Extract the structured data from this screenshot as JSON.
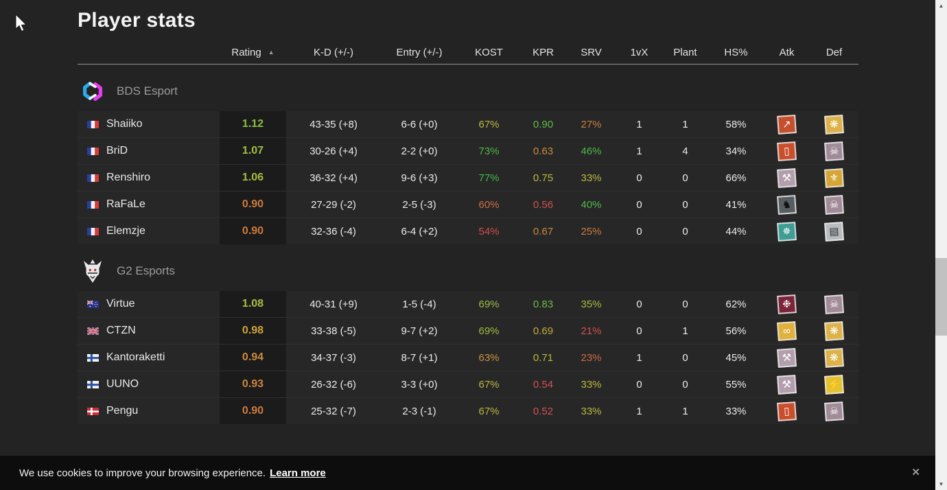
{
  "page": {
    "title": "Player stats"
  },
  "table": {
    "columns": [
      {
        "key": "name",
        "label": ""
      },
      {
        "key": "rating",
        "label": "Rating"
      },
      {
        "key": "kd",
        "label": "K-D (+/-)"
      },
      {
        "key": "entry",
        "label": "Entry (+/-)"
      },
      {
        "key": "kost",
        "label": "KOST"
      },
      {
        "key": "kpr",
        "label": "KPR"
      },
      {
        "key": "srv",
        "label": "SRV"
      },
      {
        "key": "onevx",
        "label": "1vX"
      },
      {
        "key": "plant",
        "label": "Plant"
      },
      {
        "key": "hs",
        "label": "HS%"
      },
      {
        "key": "atk",
        "label": "Atk"
      },
      {
        "key": "def",
        "label": "Def"
      }
    ],
    "sort": {
      "column": "Rating",
      "indicator": "▲"
    }
  },
  "teams": [
    {
      "name": "BDS Esport",
      "logo": "bds",
      "players": [
        {
          "name": "Shaiiko",
          "country": "fr",
          "rating": "1.12",
          "rating_color": "#8cc043",
          "kd": "43-35 (+8)",
          "entry": "6-6 (+0)",
          "kost": "67%",
          "kost_color": "#bdb83e",
          "kpr": "0.90",
          "kpr_color": "#62bb49",
          "srv": "27%",
          "srv_color": "#c97f3e",
          "onevx": "1",
          "plant": "1",
          "hs": "58%",
          "atk": {
            "op": "ash-breach-round",
            "glyph": "↗",
            "bg": "#c4502e",
            "fg": "#ffffff"
          },
          "def": {
            "op": "aruni-laser-web",
            "glyph": "❋",
            "bg": "#ddb24a",
            "fg": "#ffffff"
          }
        },
        {
          "name": "BriD",
          "country": "fr",
          "rating": "1.07",
          "rating_color": "#a2bf41",
          "kd": "30-26 (+4)",
          "entry": "2-2 (+0)",
          "kost": "73%",
          "kost_color": "#4eb84a",
          "kpr": "0.63",
          "kpr_color": "#cb8c3e",
          "srv": "46%",
          "srv_color": "#4eb84a",
          "onevx": "1",
          "plant": "4",
          "hs": "34%",
          "atk": {
            "op": "thermite-charge",
            "glyph": "▯",
            "bg": "#c94e2c",
            "fg": "#ffffff"
          },
          "def": {
            "op": "smoke-skull-mask",
            "glyph": "☠",
            "bg": "#a18b98",
            "fg": "#ffffff"
          }
        },
        {
          "name": "Renshiro",
          "country": "fr",
          "rating": "1.06",
          "rating_color": "#a6bf41",
          "kd": "36-32 (+4)",
          "entry": "9-6 (+3)",
          "kost": "77%",
          "kost_color": "#43ba47",
          "kpr": "0.75",
          "kpr_color": "#bdb83e",
          "srv": "33%",
          "srv_color": "#bdb83e",
          "onevx": "0",
          "plant": "0",
          "hs": "66%",
          "atk": {
            "op": "sledge-hammer",
            "glyph": "⚒",
            "bg": "#b29ead",
            "fg": "#ffffff"
          },
          "def": {
            "op": "valkyrie-wings",
            "glyph": "⚜",
            "bg": "#d5a636",
            "fg": "#ffffff"
          }
        },
        {
          "name": "RaFaLe",
          "country": "fr",
          "rating": "0.90",
          "rating_color": "#cd7a3c",
          "kd": "27-29 (-2)",
          "entry": "2-5 (-3)",
          "kost": "60%",
          "kost_color": "#cd6f46",
          "kpr": "0.56",
          "kpr_color": "#d15252",
          "srv": "40%",
          "srv_color": "#50b94b",
          "onevx": "0",
          "plant": "0",
          "hs": "41%",
          "atk": {
            "op": "horse",
            "glyph": "♞",
            "bg": "#585d61",
            "fg": "#0c0c0c"
          },
          "def": {
            "op": "smoke-skull-mask",
            "glyph": "☠",
            "bg": "#a18b98",
            "fg": "#ffffff"
          }
        },
        {
          "name": "Elemzje",
          "country": "fr",
          "rating": "0.90",
          "rating_color": "#cd7a3c",
          "kd": "32-36 (-4)",
          "entry": "6-4 (+2)",
          "kost": "54%",
          "kost_color": "#d14c4c",
          "kpr": "0.67",
          "kpr_color": "#ca883e",
          "srv": "25%",
          "srv_color": "#cb7a40",
          "onevx": "0",
          "plant": "0",
          "hs": "44%",
          "atk": {
            "op": "phoenix",
            "glyph": "✵",
            "bg": "#3e9d94",
            "fg": "#ffffff"
          },
          "def": {
            "op": "shield-eyes",
            "glyph": "▤",
            "bg": "#b9bcbf",
            "fg": "#2f2f2f"
          }
        }
      ]
    },
    {
      "name": "G2 Esports",
      "logo": "g2",
      "players": [
        {
          "name": "Virtue",
          "country": "au",
          "rating": "1.08",
          "rating_color": "#a6c042",
          "kd": "40-31 (+9)",
          "entry": "1-5 (-4)",
          "kost": "69%",
          "kost_color": "#9cbd40",
          "kpr": "0.83",
          "kpr_color": "#6cbd46",
          "srv": "35%",
          "srv_color": "#a4bd40",
          "onevx": "0",
          "plant": "0",
          "hs": "62%",
          "atk": {
            "op": "twitch-drone",
            "glyph": "❉",
            "bg": "#7c2438",
            "fg": "#ffffff"
          },
          "def": {
            "op": "smoke-skull-mask",
            "glyph": "☠",
            "bg": "#a18b98",
            "fg": "#ffffff"
          }
        },
        {
          "name": "CTZN",
          "country": "gb",
          "rating": "0.98",
          "rating_color": "#cfa53b",
          "kd": "33-38 (-5)",
          "entry": "9-7 (+2)",
          "kost": "69%",
          "kost_color": "#9cbd40",
          "kpr": "0.69",
          "kpr_color": "#c5a93d",
          "srv": "21%",
          "srv_color": "#d15050",
          "onevx": "0",
          "plant": "1",
          "hs": "56%",
          "atk": {
            "op": "goggles-eyes",
            "glyph": "∞",
            "bg": "#e0b13e",
            "fg": "#ffffff"
          },
          "def": {
            "op": "aruni-laser-web",
            "glyph": "❋",
            "bg": "#ddb24a",
            "fg": "#ffffff"
          }
        },
        {
          "name": "Kantoraketti",
          "country": "fi",
          "rating": "0.94",
          "rating_color": "#cd8a3c",
          "kd": "34-37 (-3)",
          "entry": "8-7 (+1)",
          "kost": "63%",
          "kost_color": "#c9943f",
          "kpr": "0.71",
          "kpr_color": "#bdb83e",
          "srv": "23%",
          "srv_color": "#cd6a44",
          "onevx": "1",
          "plant": "0",
          "hs": "45%",
          "atk": {
            "op": "sledge-hammer",
            "glyph": "⚒",
            "bg": "#b29ead",
            "fg": "#ffffff"
          },
          "def": {
            "op": "aruni-laser-web",
            "glyph": "❋",
            "bg": "#ddb24a",
            "fg": "#ffffff"
          }
        },
        {
          "name": "UUNO",
          "country": "fi",
          "rating": "0.93",
          "rating_color": "#cd853c",
          "kd": "26-32 (-6)",
          "entry": "3-3 (+0)",
          "kost": "67%",
          "kost_color": "#bdb83e",
          "kpr": "0.54",
          "kpr_color": "#d15252",
          "srv": "33%",
          "srv_color": "#bdb83e",
          "onevx": "0",
          "plant": "0",
          "hs": "55%",
          "atk": {
            "op": "sledge-hammer",
            "glyph": "⚒",
            "bg": "#b29ead",
            "fg": "#ffffff"
          },
          "def": {
            "op": "bandit-lightning",
            "glyph": "⚡",
            "bg": "#e5c22e",
            "fg": "#ffffff"
          }
        },
        {
          "name": "Pengu",
          "country": "dk",
          "rating": "0.90",
          "rating_color": "#cd7a3c",
          "kd": "25-32 (-7)",
          "entry": "2-3 (-1)",
          "kost": "67%",
          "kost_color": "#bdb83e",
          "kpr": "0.52",
          "kpr_color": "#d15252",
          "srv": "33%",
          "srv_color": "#bdb83e",
          "onevx": "1",
          "plant": "1",
          "hs": "33%",
          "atk": {
            "op": "thermite-charge",
            "glyph": "▯",
            "bg": "#c94e2c",
            "fg": "#ffffff"
          },
          "def": {
            "op": "smoke-skull-mask",
            "glyph": "☠",
            "bg": "#a18b98",
            "fg": "#ffffff"
          }
        }
      ]
    }
  ],
  "cookie_banner": {
    "text": "We use cookies to improve your browsing experience.",
    "link_label": "Learn more",
    "close_icon": "✕"
  },
  "scrollbar": {
    "up_icon": "▲",
    "down_icon": "▼"
  }
}
